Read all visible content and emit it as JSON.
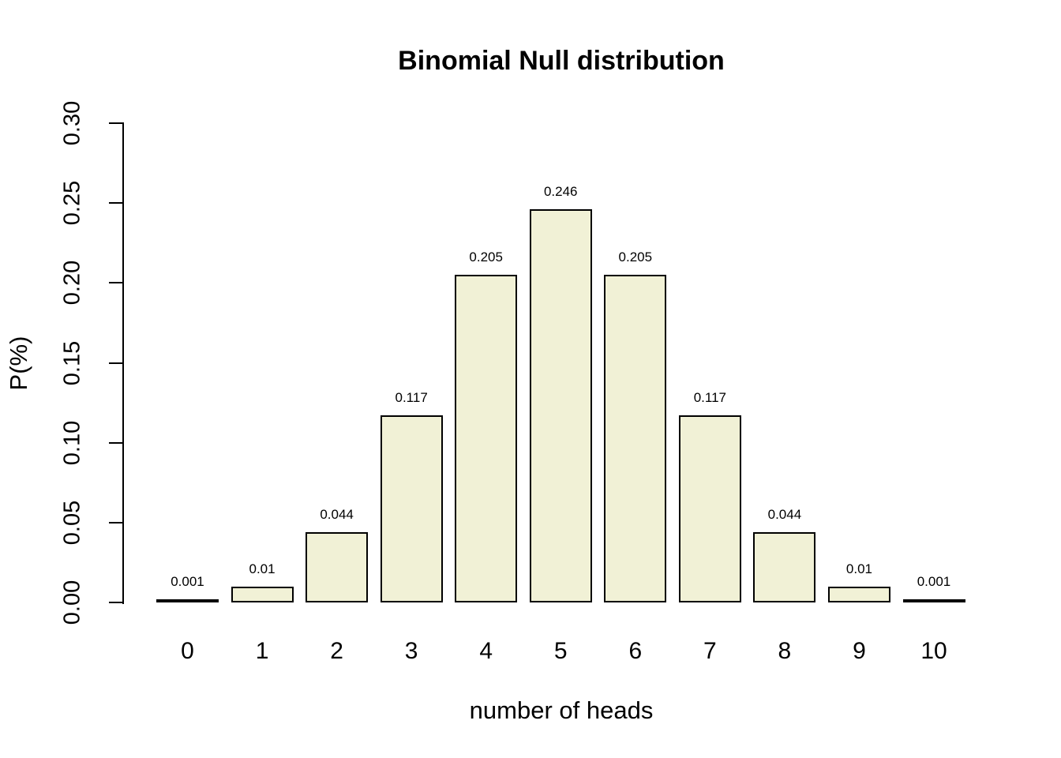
{
  "chart_data": {
    "type": "bar",
    "title": "Binomial Null distribution",
    "xlabel": "number of heads",
    "ylabel": "P(%)",
    "categories": [
      "0",
      "1",
      "2",
      "3",
      "4",
      "5",
      "6",
      "7",
      "8",
      "9",
      "10"
    ],
    "values": [
      0.001,
      0.01,
      0.044,
      0.117,
      0.205,
      0.246,
      0.205,
      0.117,
      0.044,
      0.01,
      0.001
    ],
    "bar_value_labels": [
      "0.001",
      "0.01",
      "0.044",
      "0.117",
      "0.205",
      "0.246",
      "0.205",
      "0.117",
      "0.044",
      "0.01",
      "0.001"
    ],
    "ylim": [
      0,
      0.3
    ],
    "yticks": [
      "0.00",
      "0.05",
      "0.10",
      "0.15",
      "0.20",
      "0.25",
      "0.30"
    ],
    "grid": false,
    "legend": false,
    "colors": {
      "bar_fill": "#F1F1D6",
      "bar_border": "#000000",
      "axis": "#000000",
      "text": "#000000",
      "background": "#FFFFFF"
    }
  }
}
